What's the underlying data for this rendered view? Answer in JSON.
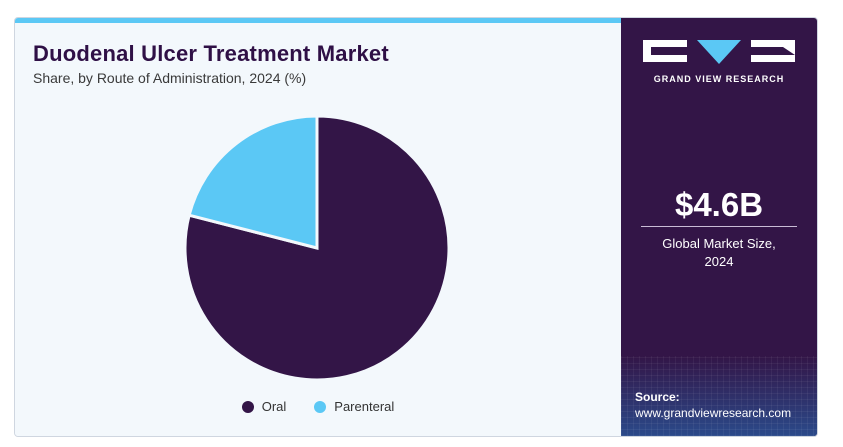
{
  "header": {
    "title": "Duodenal Ulcer Treatment Market",
    "subtitle": "Share, by Route of Administration, 2024 (%)"
  },
  "chart_data": {
    "type": "pie",
    "title": "Duodenal Ulcer Treatment Market",
    "subtitle": "Share, by Route of Administration, 2024 (%)",
    "labels": [
      "Oral",
      "Parenteral"
    ],
    "values": [
      79,
      21
    ],
    "colors": [
      "#331547",
      "#5bc8f5"
    ],
    "start_angle_deg": 0,
    "direction": "clockwise",
    "legend_position": "bottom"
  },
  "legend": {
    "items": [
      {
        "label": "Oral",
        "color": "#331547"
      },
      {
        "label": "Parenteral",
        "color": "#5bc8f5"
      }
    ]
  },
  "sidebar": {
    "brand": "GRAND VIEW RESEARCH",
    "market_size": "$4.6B",
    "market_size_label_line1": "Global Market Size,",
    "market_size_label_line2": "2024",
    "source_label": "Source:",
    "source_url": "www.grandviewresearch.com"
  },
  "colors": {
    "accent": "#5bc8f5",
    "brand_dark": "#331547",
    "panel_bg": "#f3f8fc"
  }
}
